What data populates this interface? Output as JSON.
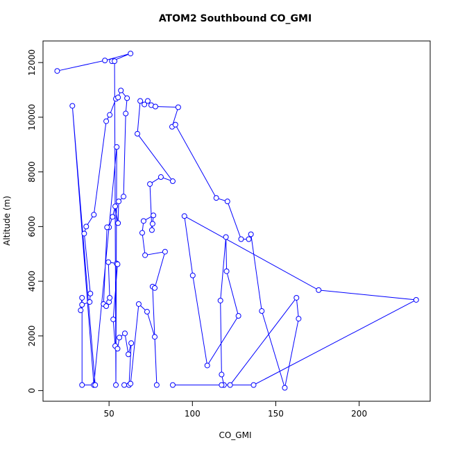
{
  "chart_data": {
    "type": "line",
    "title": "ATOM2 Southbound CO_GMI",
    "x_label": "CO_GMI",
    "y_label": "Altitude (m)",
    "color": "#0000ff",
    "markers": true,
    "x": [
      18.9,
      47.5,
      62.9,
      51.7,
      53.3,
      54.1,
      54.6,
      40.9,
      28.0,
      41.7,
      33.8,
      33.8,
      33.0,
      33.8,
      38.4,
      38.8,
      35.1,
      36.3,
      40.9,
      48.3,
      50.4,
      54.1,
      55.4,
      57.1,
      60.8,
      60.0,
      58.7,
      55.8,
      55.4,
      53.7,
      52.1,
      50.0,
      48.8,
      46.7,
      48.3,
      50.0,
      50.4,
      49.6,
      54.6,
      55.1,
      52.5,
      53.7,
      55.1,
      56.2,
      59.5,
      61.6,
      63.3,
      62.0,
      59.1,
      62.9,
      67.8,
      72.8,
      77.4,
      78.6,
      76.1,
      77.4,
      83.6,
      71.6,
      69.9,
      70.7,
      76.6,
      76.1,
      75.7,
      74.5,
      81.1,
      88.2,
      67.0,
      68.7,
      71.2,
      73.2,
      75.3,
      77.8,
      91.5,
      87.8,
      89.8,
      114.3,
      121.0,
      129.2,
      133.8,
      135.1,
      141.6,
      155.4,
      163.7,
      162.4,
      122.6,
      118.9,
      117.5,
      116.8,
      120.1,
      120.5,
      127.6,
      108.9,
      100.2,
      95.2,
      175.7,
      234.2,
      136.7,
      117.5,
      88.2
    ],
    "values": [
      11693,
      12076,
      12331,
      12050,
      12050,
      204,
      8910,
      204,
      10416,
      204,
      204,
      3395,
      2936,
      3140,
      3242,
      3549,
      5744,
      6000,
      6434,
      9855,
      10084,
      10672,
      10723,
      10978,
      10697,
      10135,
      7097,
      6919,
      6127,
      6740,
      6357,
      5974,
      5974,
      3166,
      3089,
      3242,
      3395,
      4698,
      4647,
      4621,
      2604,
      1634,
      1532,
      1940,
      2093,
      1327,
      1736,
      204,
      204,
      255,
      3166,
      2885,
      1966,
      204,
      3804,
      3753,
      5080,
      4953,
      5770,
      6204,
      6408,
      6102,
      5872,
      7557,
      7812,
      7659,
      9395,
      10595,
      10467,
      10595,
      10442,
      10390,
      10365,
      9650,
      9727,
      7046,
      6919,
      5540,
      5540,
      5719,
      2910,
      102,
      2630,
      3395,
      204,
      204,
      587,
      3293,
      5617,
      4366,
      2732,
      919,
      4212,
      6383,
      3676,
      3319,
      204,
      204,
      204
    ],
    "xlim": [
      10.4,
      242.6
    ],
    "ylim": [
      -390,
      12790
    ],
    "xticks": [
      50,
      100,
      150,
      200
    ],
    "yticks": [
      0,
      2000,
      4000,
      6000,
      8000,
      10000,
      12000
    ]
  }
}
